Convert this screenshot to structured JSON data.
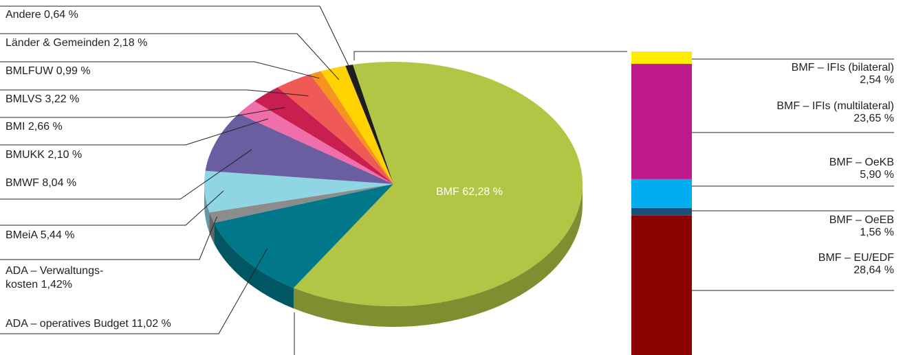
{
  "chart_data": [
    {
      "type": "pie",
      "categories": [
        "BMF",
        "ADA – operatives Budget",
        "ADA – Verwaltungs-kosten",
        "BMeiA",
        "BMWF",
        "BMUKK",
        "BMI",
        "BMLVS",
        "BMLFUW",
        "Länder & Gemeinden",
        "Andere"
      ],
      "values": [
        62.28,
        11.02,
        1.42,
        5.44,
        8.04,
        2.1,
        2.66,
        3.22,
        0.99,
        2.18,
        0.64
      ],
      "value_labels": [
        "62,28 %",
        "11,02 %",
        "1,42%",
        "5,44 %",
        "8,04 %",
        "2,10 %",
        "2,66 %",
        "3,22 %",
        "0,99 %",
        "2,18 %",
        "0,64 %"
      ],
      "colors": [
        "#b2c545",
        "#00788a",
        "#8c8c8c",
        "#8fd5e3",
        "#6a5ea1",
        "#f06eaa",
        "#c81e50",
        "#ef5a57",
        "#f7941d",
        "#ffd200",
        "#1e1e1e"
      ]
    },
    {
      "type": "stacked_bar",
      "categories": [
        "BMF – IFIs (bilateral)",
        "BMF – IFIs (multilateral)",
        "BMF – OeKB",
        "BMF – OeEB",
        "BMF – EU/EDF"
      ],
      "values": [
        2.54,
        23.65,
        5.9,
        1.56,
        28.64
      ],
      "value_labels": [
        "2,54 %",
        "23,65 %",
        "5,90 %",
        "1,56 %",
        "28,64 %"
      ],
      "colors": [
        "#ffed00",
        "#be1a8c",
        "#00aeef",
        "#1b4f7a",
        "#8b0000"
      ]
    }
  ]
}
